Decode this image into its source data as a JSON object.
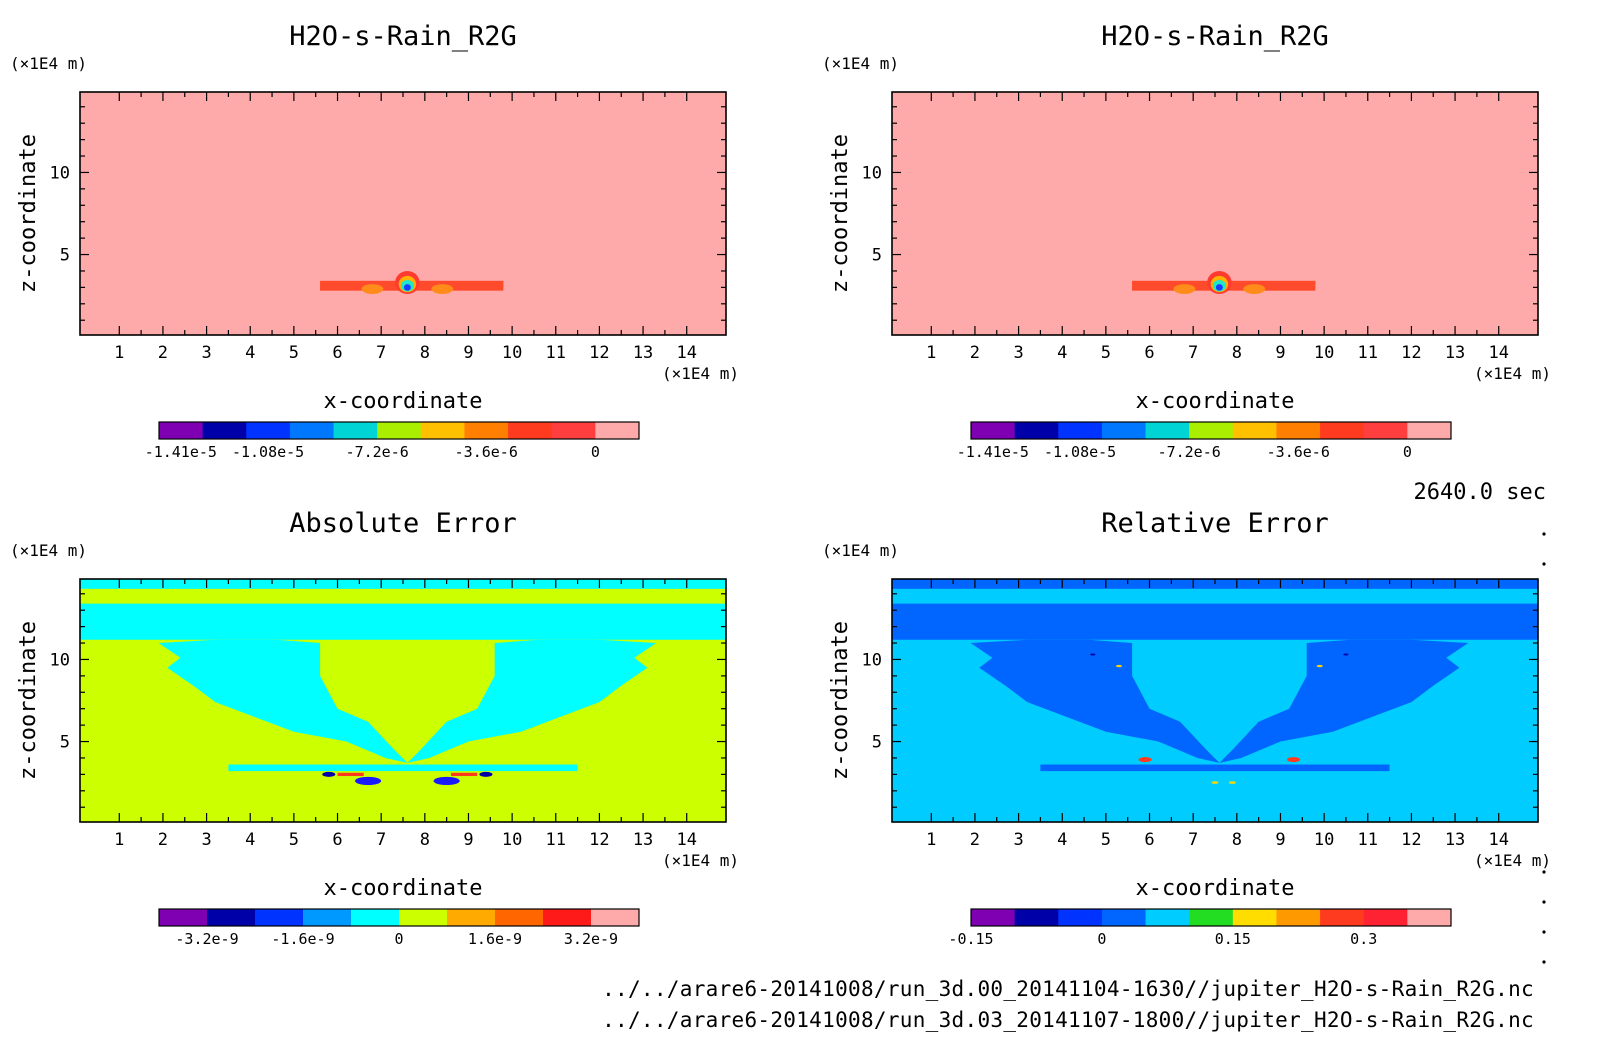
{
  "timestamp": "2640.0 sec",
  "files": [
    "../../arare6-20141008/run_3d.00_20141104-1630//jupiter_H2O-s-Rain_R2G.nc",
    "../../arare6-20141008/run_3d.03_20141107-1800//jupiter_H2O-s-Rain_R2G.nc"
  ],
  "chart_data": [
    {
      "type": "heatmap",
      "title": "H2O-s-Rain_R2G",
      "xlabel": "x-coordinate",
      "ylabel": "z-coordinate",
      "x_unit": "(×1E4 m)",
      "y_unit": "(×1E4 m)",
      "xlim": [
        0.1,
        14.9
      ],
      "ylim": [
        0.1,
        14.9
      ],
      "x_ticks": [
        1,
        2,
        3,
        4,
        5,
        6,
        7,
        8,
        9,
        10,
        11,
        12,
        13,
        14
      ],
      "y_ticks": [
        5,
        10
      ],
      "background_color": "#ffaaaa",
      "features": [
        {
          "shape": "band",
          "x": [
            5.6,
            9.8
          ],
          "z": [
            2.8,
            3.4
          ],
          "color": "#ff4a2c"
        },
        {
          "shape": "blob",
          "x": 6.8,
          "z": 2.9,
          "rx": 0.25,
          "rz": 0.3,
          "color": "#ff8c1a"
        },
        {
          "shape": "blob",
          "x": 8.4,
          "z": 2.9,
          "rx": 0.25,
          "rz": 0.3,
          "color": "#ff8c1a"
        },
        {
          "shape": "blob",
          "x": 7.6,
          "z": 3.3,
          "rx": 0.28,
          "rz": 0.7,
          "color": "#ff3b30"
        },
        {
          "shape": "blob",
          "x": 7.6,
          "z": 3.2,
          "rx": 0.2,
          "rz": 0.5,
          "color": "#ffb000"
        },
        {
          "shape": "blob",
          "x": 7.6,
          "z": 3.1,
          "rx": 0.15,
          "rz": 0.35,
          "color": "#22e6c8"
        },
        {
          "shape": "blob",
          "x": 7.6,
          "z": 3.0,
          "rx": 0.08,
          "rz": 0.2,
          "color": "#1a3cff"
        }
      ],
      "colorbar": {
        "colors": [
          "#7f00b3",
          "#0000a8",
          "#0033ff",
          "#0077ff",
          "#00d4d4",
          "#aaee00",
          "#ffc000",
          "#ff7f00",
          "#ff3b1f",
          "#ff3f3f",
          "#ffaaaa"
        ],
        "labels": [
          "-1.41e-5",
          "-1.08e-5",
          "-7.2e-6",
          "-3.6e-6",
          "0"
        ],
        "label_positions": [
          0.5,
          2.5,
          5.0,
          7.5,
          10.0
        ]
      }
    },
    {
      "type": "heatmap",
      "title": "H2O-s-Rain_R2G",
      "xlabel": "x-coordinate",
      "ylabel": "z-coordinate",
      "x_unit": "(×1E4 m)",
      "y_unit": "(×1E4 m)",
      "xlim": [
        0.1,
        14.9
      ],
      "ylim": [
        0.1,
        14.9
      ],
      "x_ticks": [
        1,
        2,
        3,
        4,
        5,
        6,
        7,
        8,
        9,
        10,
        11,
        12,
        13,
        14
      ],
      "y_ticks": [
        5,
        10
      ],
      "background_color": "#ffaaaa",
      "features": [
        {
          "shape": "band",
          "x": [
            5.6,
            9.8
          ],
          "z": [
            2.8,
            3.4
          ],
          "color": "#ff4a2c"
        },
        {
          "shape": "blob",
          "x": 6.8,
          "z": 2.9,
          "rx": 0.25,
          "rz": 0.3,
          "color": "#ff8c1a"
        },
        {
          "shape": "blob",
          "x": 8.4,
          "z": 2.9,
          "rx": 0.25,
          "rz": 0.3,
          "color": "#ff8c1a"
        },
        {
          "shape": "blob",
          "x": 7.6,
          "z": 3.3,
          "rx": 0.28,
          "rz": 0.7,
          "color": "#ff3b30"
        },
        {
          "shape": "blob",
          "x": 7.6,
          "z": 3.2,
          "rx": 0.2,
          "rz": 0.5,
          "color": "#ffb000"
        },
        {
          "shape": "blob",
          "x": 7.6,
          "z": 3.1,
          "rx": 0.15,
          "rz": 0.35,
          "color": "#22e6c8"
        },
        {
          "shape": "blob",
          "x": 7.6,
          "z": 3.0,
          "rx": 0.08,
          "rz": 0.2,
          "color": "#1a3cff"
        }
      ],
      "colorbar": {
        "colors": [
          "#7f00b3",
          "#0000a8",
          "#0033ff",
          "#0077ff",
          "#00d4d4",
          "#aaee00",
          "#ffc000",
          "#ff7f00",
          "#ff3b1f",
          "#ff3f3f",
          "#ffaaaa"
        ],
        "labels": [
          "-1.41e-5",
          "-1.08e-5",
          "-7.2e-6",
          "-3.6e-6",
          "0"
        ],
        "label_positions": [
          0.5,
          2.5,
          5.0,
          7.5,
          10.0
        ]
      }
    },
    {
      "type": "heatmap",
      "title": "Absolute Error",
      "xlabel": "x-coordinate",
      "ylabel": "z-coordinate",
      "x_unit": "(×1E4 m)",
      "y_unit": "(×1E4 m)",
      "xlim": [
        0.1,
        14.9
      ],
      "ylim": [
        0.1,
        14.9
      ],
      "x_ticks": [
        1,
        2,
        3,
        4,
        5,
        6,
        7,
        8,
        9,
        10,
        11,
        12,
        13,
        14
      ],
      "y_ticks": [
        5,
        10
      ],
      "background_color": "#ccff00",
      "features": [
        {
          "shape": "band",
          "x": [
            0.1,
            14.9
          ],
          "z": [
            11.2,
            13.4
          ],
          "color": "#00ffff"
        },
        {
          "shape": "band",
          "x": [
            0.1,
            14.9
          ],
          "z": [
            14.3,
            14.9
          ],
          "color": "#00ffff"
        },
        {
          "shape": "wing",
          "side": "left",
          "color": "#00ffff"
        },
        {
          "shape": "wing",
          "side": "right",
          "color": "#00ffff"
        },
        {
          "shape": "band",
          "x": [
            3.5,
            11.5
          ],
          "z": [
            3.2,
            3.6
          ],
          "color": "#00ffff"
        },
        {
          "shape": "blob",
          "x": 6.7,
          "z": 2.6,
          "rx": 0.3,
          "rz": 0.25,
          "color": "#1a1aff"
        },
        {
          "shape": "blob",
          "x": 8.5,
          "z": 2.6,
          "rx": 0.3,
          "rz": 0.25,
          "color": "#1a1aff"
        },
        {
          "shape": "blob",
          "x": 5.8,
          "z": 3.0,
          "rx": 0.15,
          "rz": 0.15,
          "color": "#0000a8"
        },
        {
          "shape": "blob",
          "x": 9.4,
          "z": 3.0,
          "rx": 0.15,
          "rz": 0.15,
          "color": "#0000a8"
        },
        {
          "shape": "band",
          "x": [
            6.0,
            6.6
          ],
          "z": [
            2.9,
            3.1
          ],
          "color": "#ff3b1f"
        },
        {
          "shape": "band",
          "x": [
            8.6,
            9.2
          ],
          "z": [
            2.9,
            3.1
          ],
          "color": "#ff3b1f"
        }
      ],
      "colorbar": {
        "colors": [
          "#7f00b3",
          "#0000a8",
          "#0033ff",
          "#0099ff",
          "#00ffff",
          "#ccff00",
          "#ffaa00",
          "#ff6600",
          "#ff1a1a",
          "#ffaaaa"
        ],
        "labels": [
          "-3.2e-9",
          "-1.6e-9",
          "0",
          "1.6e-9",
          "3.2e-9"
        ],
        "label_positions": [
          1.0,
          3.0,
          5.0,
          7.0,
          9.0
        ]
      }
    },
    {
      "type": "heatmap",
      "title": "Relative Error",
      "xlabel": "x-coordinate",
      "ylabel": "z-coordinate",
      "x_unit": "(×1E4 m)",
      "y_unit": "(×1E4 m)",
      "xlim": [
        0.1,
        14.9
      ],
      "ylim": [
        0.1,
        14.9
      ],
      "x_ticks": [
        1,
        2,
        3,
        4,
        5,
        6,
        7,
        8,
        9,
        10,
        11,
        12,
        13,
        14
      ],
      "y_ticks": [
        5,
        10
      ],
      "background_color": "#00ccff",
      "features": [
        {
          "shape": "band",
          "x": [
            0.1,
            14.9
          ],
          "z": [
            11.2,
            13.4
          ],
          "color": "#0066ff"
        },
        {
          "shape": "band",
          "x": [
            0.1,
            14.9
          ],
          "z": [
            14.3,
            14.9
          ],
          "color": "#0066ff"
        },
        {
          "shape": "wing",
          "side": "left",
          "color": "#0066ff"
        },
        {
          "shape": "wing",
          "side": "right",
          "color": "#0066ff"
        },
        {
          "shape": "band",
          "x": [
            3.5,
            11.5
          ],
          "z": [
            3.2,
            3.6
          ],
          "color": "#0066ff"
        },
        {
          "shape": "blob",
          "x": 5.9,
          "z": 3.9,
          "rx": 0.15,
          "rz": 0.15,
          "color": "#ff3b1f"
        },
        {
          "shape": "blob",
          "x": 9.3,
          "z": 3.9,
          "rx": 0.15,
          "rz": 0.15,
          "color": "#ff3b1f"
        },
        {
          "shape": "blob",
          "x": 7.5,
          "z": 2.5,
          "rx": 0.08,
          "rz": 0.08,
          "color": "#ffd700"
        },
        {
          "shape": "blob",
          "x": 7.9,
          "z": 2.5,
          "rx": 0.08,
          "rz": 0.08,
          "color": "#ffd700"
        },
        {
          "shape": "blob",
          "x": 5.3,
          "z": 9.6,
          "rx": 0.07,
          "rz": 0.07,
          "color": "#ffd700"
        },
        {
          "shape": "blob",
          "x": 9.9,
          "z": 9.6,
          "rx": 0.07,
          "rz": 0.07,
          "color": "#ffd700"
        },
        {
          "shape": "blob",
          "x": 4.7,
          "z": 10.3,
          "rx": 0.06,
          "rz": 0.06,
          "color": "#0000a8"
        },
        {
          "shape": "blob",
          "x": 10.5,
          "z": 10.3,
          "rx": 0.06,
          "rz": 0.06,
          "color": "#0000a8"
        }
      ],
      "colorbar": {
        "colors": [
          "#7f00b3",
          "#0000a8",
          "#0033ff",
          "#0066ff",
          "#00ccff",
          "#22dd22",
          "#ffdd00",
          "#ff9900",
          "#ff3b1f",
          "#ff2233",
          "#ffaaaa"
        ],
        "labels": [
          "-0.15",
          "0",
          "0.15",
          "0.3"
        ],
        "label_positions": [
          0.0,
          3.0,
          6.0,
          9.0
        ]
      }
    }
  ]
}
